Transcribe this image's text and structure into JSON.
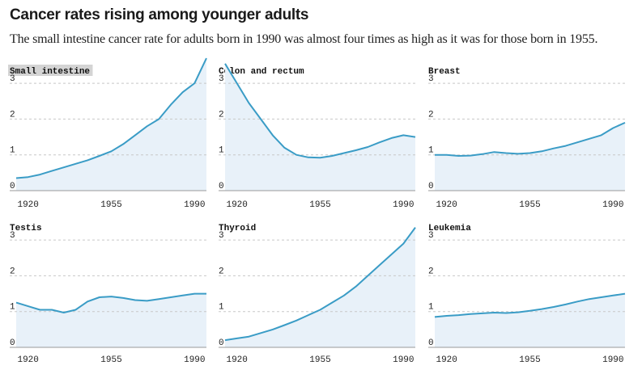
{
  "header": {
    "title": "Cancer rates rising among younger adults",
    "subtitle": "The small intestine cancer rate for adults born in 1990 was almost four times as high as it was for those born in 1955."
  },
  "colors": {
    "line": "#3a9cc6",
    "area": "#e8f1f9",
    "highlight": "#d4d4d4"
  },
  "chart_data": [
    {
      "type": "area",
      "title": "Small intestine",
      "highlighted": true,
      "xlabel": "",
      "ylabel": "",
      "ylim": [
        0,
        3.5
      ],
      "xlim": [
        1915,
        1995
      ],
      "yticks": [
        0,
        1,
        2,
        3
      ],
      "xticks": [
        1920,
        1955,
        1990
      ],
      "x": [
        1915,
        1920,
        1925,
        1930,
        1935,
        1940,
        1945,
        1950,
        1955,
        1960,
        1965,
        1970,
        1975,
        1980,
        1985,
        1990,
        1995
      ],
      "values": [
        0.35,
        0.38,
        0.45,
        0.55,
        0.65,
        0.75,
        0.85,
        0.97,
        1.1,
        1.3,
        1.55,
        1.8,
        2.0,
        2.4,
        2.75,
        3.0,
        3.7
      ]
    },
    {
      "type": "area",
      "title": "Colon and rectum",
      "highlighted": false,
      "xlabel": "",
      "ylabel": "",
      "ylim": [
        0,
        3.5
      ],
      "xlim": [
        1915,
        1995
      ],
      "yticks": [
        0,
        1,
        2,
        3
      ],
      "xticks": [
        1920,
        1955,
        1990
      ],
      "x": [
        1915,
        1920,
        1925,
        1930,
        1935,
        1940,
        1945,
        1950,
        1955,
        1960,
        1965,
        1970,
        1975,
        1980,
        1985,
        1990,
        1995
      ],
      "values": [
        3.55,
        3.0,
        2.45,
        2.0,
        1.55,
        1.2,
        1.0,
        0.93,
        0.92,
        0.97,
        1.05,
        1.13,
        1.22,
        1.35,
        1.47,
        1.55,
        1.5
      ]
    },
    {
      "type": "area",
      "title": "Breast",
      "highlighted": false,
      "xlabel": "",
      "ylabel": "",
      "ylim": [
        0,
        3.5
      ],
      "xlim": [
        1915,
        1995
      ],
      "yticks": [
        0,
        1,
        2,
        3
      ],
      "xticks": [
        1920,
        1955,
        1990
      ],
      "x": [
        1915,
        1920,
        1925,
        1930,
        1935,
        1940,
        1945,
        1950,
        1955,
        1960,
        1965,
        1970,
        1975,
        1980,
        1985,
        1990,
        1995
      ],
      "values": [
        1.0,
        1.0,
        0.97,
        0.98,
        1.02,
        1.08,
        1.05,
        1.03,
        1.05,
        1.1,
        1.18,
        1.25,
        1.35,
        1.45,
        1.55,
        1.75,
        1.9
      ]
    },
    {
      "type": "area",
      "title": "Testis",
      "highlighted": false,
      "xlabel": "",
      "ylabel": "",
      "ylim": [
        0,
        3.5
      ],
      "xlim": [
        1915,
        1995
      ],
      "yticks": [
        0,
        1,
        2,
        3
      ],
      "xticks": [
        1920,
        1955,
        1990
      ],
      "x": [
        1915,
        1920,
        1925,
        1930,
        1935,
        1940,
        1945,
        1950,
        1955,
        1960,
        1965,
        1970,
        1975,
        1980,
        1985,
        1990,
        1995
      ],
      "values": [
        1.25,
        1.15,
        1.05,
        1.05,
        0.97,
        1.05,
        1.28,
        1.4,
        1.42,
        1.38,
        1.32,
        1.3,
        1.35,
        1.4,
        1.45,
        1.5,
        1.5
      ]
    },
    {
      "type": "area",
      "title": "Thyroid",
      "highlighted": false,
      "xlabel": "",
      "ylabel": "",
      "ylim": [
        0,
        3.5
      ],
      "xlim": [
        1915,
        1995
      ],
      "yticks": [
        0,
        1,
        2,
        3
      ],
      "xticks": [
        1920,
        1955,
        1990
      ],
      "x": [
        1915,
        1920,
        1925,
        1930,
        1935,
        1940,
        1945,
        1950,
        1955,
        1960,
        1965,
        1970,
        1975,
        1980,
        1985,
        1990,
        1995
      ],
      "values": [
        0.2,
        0.25,
        0.3,
        0.4,
        0.5,
        0.62,
        0.75,
        0.9,
        1.05,
        1.25,
        1.45,
        1.7,
        2.0,
        2.3,
        2.6,
        2.9,
        3.35
      ]
    },
    {
      "type": "area",
      "title": "Leukemia",
      "highlighted": false,
      "xlabel": "",
      "ylabel": "",
      "ylim": [
        0,
        3.5
      ],
      "xlim": [
        1915,
        1995
      ],
      "yticks": [
        0,
        1,
        2,
        3
      ],
      "xticks": [
        1920,
        1955,
        1990
      ],
      "x": [
        1915,
        1920,
        1925,
        1930,
        1935,
        1940,
        1945,
        1950,
        1955,
        1960,
        1965,
        1970,
        1975,
        1980,
        1985,
        1990,
        1995
      ],
      "values": [
        0.85,
        0.88,
        0.9,
        0.93,
        0.95,
        0.97,
        0.96,
        0.98,
        1.02,
        1.07,
        1.13,
        1.2,
        1.28,
        1.35,
        1.4,
        1.45,
        1.5
      ]
    }
  ]
}
